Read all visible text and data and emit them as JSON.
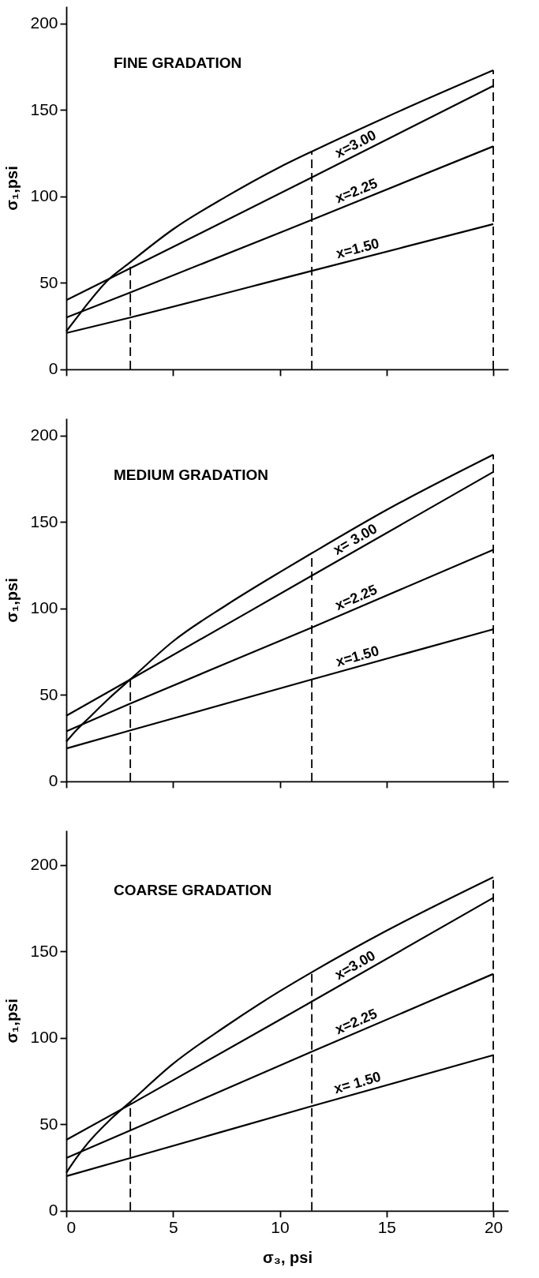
{
  "chart_data": [
    {
      "type": "line",
      "title": "FINE GRADATION",
      "ylabel": "σ₁,psi",
      "xlim": [
        0,
        20.7
      ],
      "ylim": [
        0,
        210
      ],
      "xticks": [
        0,
        5,
        10,
        15,
        20
      ],
      "yticks": [
        0,
        50,
        100,
        150,
        200
      ],
      "tick_labels": "y",
      "series": [
        {
          "name": "x=1.50",
          "color": "#000000",
          "x": [
            0,
            3,
            11.5,
            20
          ],
          "values": [
            21,
            30,
            57,
            84
          ]
        },
        {
          "name": "x=2.25",
          "color": "#000000",
          "x": [
            0,
            3,
            11.5,
            20
          ],
          "values": [
            30,
            44.5,
            86.5,
            129
          ]
        },
        {
          "name": "x=3.00",
          "color": "#000000",
          "x": [
            0,
            3,
            11.5,
            20
          ],
          "values": [
            40,
            58.5,
            111,
            164
          ]
        },
        {
          "color": "#000000",
          "x": [
            0,
            0.5,
            1,
            1.9,
            3,
            5,
            7.5,
            10,
            11.5,
            15,
            20
          ],
          "values": [
            22,
            30,
            38,
            51,
            62,
            81,
            100,
            117,
            126,
            146,
            173
          ]
        }
      ],
      "ref_lines": [
        {
          "axis": "x",
          "value": 3,
          "line_style": "dashed",
          "color": "#000000"
        },
        {
          "axis": "x",
          "value": 11.5,
          "line_style": "dashed",
          "color": "#000000"
        },
        {
          "axis": "x",
          "value": 20,
          "line_style": "dashed",
          "color": "#000000"
        }
      ]
    },
    {
      "type": "line",
      "title": "MEDIUM GRADATION",
      "ylabel": "σ₁,psi",
      "xlim": [
        0,
        20.7
      ],
      "ylim": [
        0,
        210
      ],
      "xticks": [
        0,
        5,
        10,
        15,
        20
      ],
      "yticks": [
        0,
        50,
        100,
        150,
        200
      ],
      "tick_labels": "y",
      "series": [
        {
          "name": "x=1.50",
          "color": "#000000",
          "x": [
            0,
            3,
            11.5,
            20
          ],
          "values": [
            19,
            29.5,
            59,
            88
          ]
        },
        {
          "name": "x=2.25",
          "color": "#000000",
          "x": [
            0,
            3,
            11.5,
            20
          ],
          "values": [
            29,
            45,
            89,
            134
          ]
        },
        {
          "name": "x= 3.00",
          "color": "#000000",
          "x": [
            0,
            3,
            11.5,
            20
          ],
          "values": [
            38,
            59,
            119,
            179
          ]
        },
        {
          "color": "#000000",
          "x": [
            0,
            0.5,
            1,
            2,
            3,
            5,
            7.5,
            10,
            11.5,
            15,
            20
          ],
          "values": [
            23,
            30,
            36,
            48,
            59,
            81,
            102,
            121,
            132,
            157,
            189
          ]
        }
      ],
      "ref_lines": [
        {
          "axis": "x",
          "value": 3,
          "line_style": "dashed",
          "color": "#000000"
        },
        {
          "axis": "x",
          "value": 11.5,
          "line_style": "dashed",
          "color": "#000000"
        },
        {
          "axis": "x",
          "value": 20,
          "line_style": "dashed",
          "color": "#000000"
        }
      ]
    },
    {
      "type": "line",
      "title": "COARSE GRADATION",
      "xlabel": "σ₃, psi",
      "ylabel": "σ₁,psi",
      "xlim": [
        0,
        20.7
      ],
      "ylim": [
        0,
        220
      ],
      "xticks": [
        0,
        5,
        10,
        15,
        20
      ],
      "yticks": [
        0,
        50,
        100,
        150,
        200
      ],
      "series": [
        {
          "name": "x= 1.50",
          "color": "#000000",
          "x": [
            0,
            3,
            11.5,
            20
          ],
          "values": [
            20,
            30.5,
            60.5,
            90
          ]
        },
        {
          "name": "x=2.25",
          "color": "#000000",
          "x": [
            0,
            3,
            11.5,
            20
          ],
          "values": [
            30.5,
            46.5,
            92,
            137
          ]
        },
        {
          "name": "x=3.00",
          "color": "#000000",
          "x": [
            0,
            3,
            11.5,
            20
          ],
          "values": [
            41,
            61.5,
            121,
            181
          ]
        },
        {
          "color": "#000000",
          "x": [
            0,
            0.5,
            1,
            2,
            3,
            5,
            7.5,
            10,
            11.5,
            15,
            20
          ],
          "values": [
            22,
            31,
            39,
            52,
            63,
            85,
            107,
            127,
            138,
            162,
            193
          ]
        }
      ],
      "ref_lines": [
        {
          "axis": "x",
          "value": 3,
          "line_style": "dashed",
          "color": "#000000"
        },
        {
          "axis": "x",
          "value": 11.5,
          "line_style": "dashed",
          "color": "#000000"
        },
        {
          "axis": "x",
          "value": 20,
          "line_style": "dashed",
          "color": "#000000"
        }
      ]
    }
  ]
}
